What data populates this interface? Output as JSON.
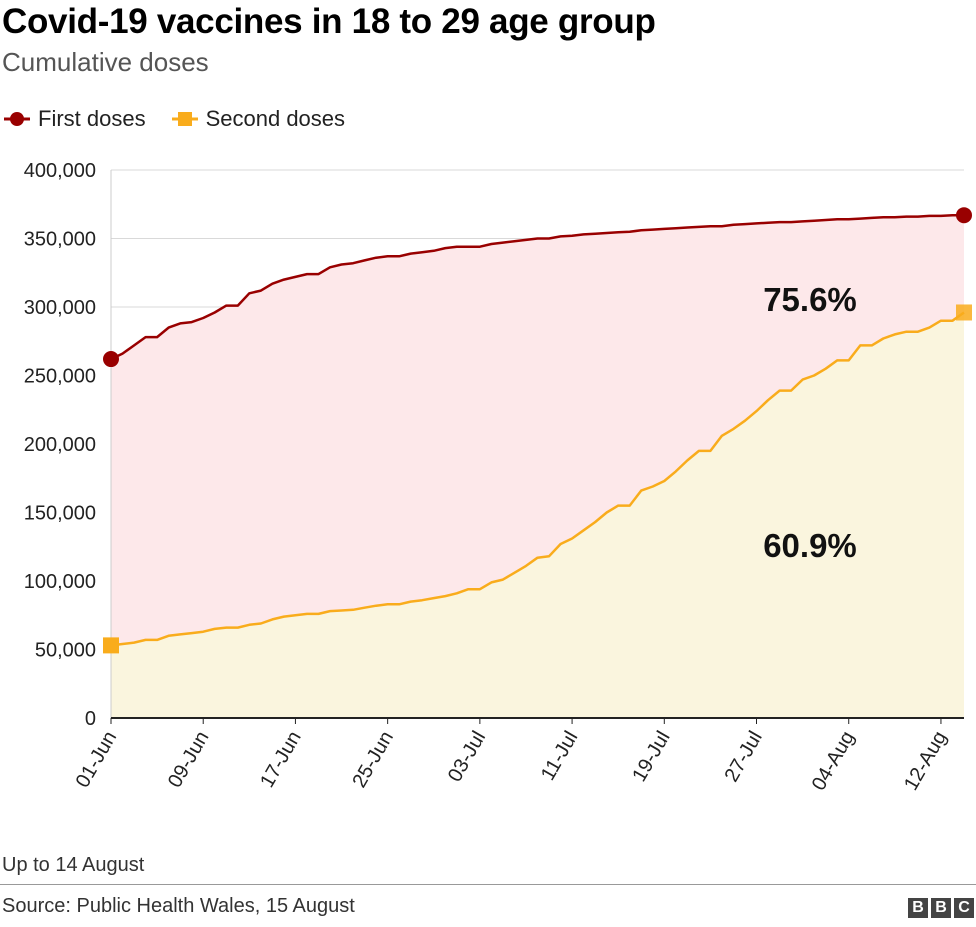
{
  "header": {
    "title": "Covid-19 vaccines in 18 to 29 age group",
    "subtitle": "Cumulative doses"
  },
  "legend": {
    "items": [
      {
        "label": "First doses",
        "color": "#990000",
        "marker": "circle"
      },
      {
        "label": "Second doses",
        "color": "#f9ac1c",
        "marker": "square"
      }
    ]
  },
  "footer": {
    "note": "Up to 14 August",
    "source": "Source: Public Health Wales, 15 August",
    "logo_letters": [
      "B",
      "B",
      "C"
    ]
  },
  "chart_data": {
    "type": "area",
    "x_start": "2021-06-01",
    "x_end": "2021-08-14",
    "x_tick_labels": [
      "01-Jun",
      "09-Jun",
      "17-Jun",
      "25-Jun",
      "03-Jul",
      "11-Jul",
      "19-Jul",
      "27-Jul",
      "04-Aug",
      "12-Aug"
    ],
    "y_tick_labels": [
      "0",
      "50,000",
      "100,000",
      "150,000",
      "200,000",
      "250,000",
      "300,000",
      "350,000",
      "400,000"
    ],
    "ylim": [
      0,
      400000
    ],
    "grid": "horizontal",
    "legend_position": "top-left",
    "annotations": [
      {
        "text": "75.6%",
        "series": "First doses"
      },
      {
        "text": "60.9%",
        "series": "Second doses"
      }
    ],
    "series": [
      {
        "name": "First doses",
        "color": "#990000",
        "fill": "#fde8ea",
        "points": [
          [
            "2021-06-01",
            262000
          ],
          [
            "2021-06-02",
            266000
          ],
          [
            "2021-06-03",
            272000
          ],
          [
            "2021-06-04",
            278000
          ],
          [
            "2021-06-05",
            278000
          ],
          [
            "2021-06-06",
            285000
          ],
          [
            "2021-06-07",
            288000
          ],
          [
            "2021-06-08",
            289000
          ],
          [
            "2021-06-09",
            292000
          ],
          [
            "2021-06-10",
            296000
          ],
          [
            "2021-06-11",
            301000
          ],
          [
            "2021-06-12",
            301000
          ],
          [
            "2021-06-13",
            310000
          ],
          [
            "2021-06-14",
            312000
          ],
          [
            "2021-06-15",
            317000
          ],
          [
            "2021-06-16",
            320000
          ],
          [
            "2021-06-17",
            322000
          ],
          [
            "2021-06-18",
            324000
          ],
          [
            "2021-06-19",
            324000
          ],
          [
            "2021-06-20",
            329000
          ],
          [
            "2021-06-21",
            331000
          ],
          [
            "2021-06-22",
            332000
          ],
          [
            "2021-06-23",
            334000
          ],
          [
            "2021-06-24",
            336000
          ],
          [
            "2021-06-25",
            337000
          ],
          [
            "2021-06-26",
            337000
          ],
          [
            "2021-06-27",
            339000
          ],
          [
            "2021-06-28",
            340000
          ],
          [
            "2021-06-29",
            341000
          ],
          [
            "2021-06-30",
            343000
          ],
          [
            "2021-07-01",
            344000
          ],
          [
            "2021-07-02",
            344000
          ],
          [
            "2021-07-03",
            344000
          ],
          [
            "2021-07-04",
            346000
          ],
          [
            "2021-07-05",
            347000
          ],
          [
            "2021-07-06",
            348000
          ],
          [
            "2021-07-07",
            349000
          ],
          [
            "2021-07-08",
            350000
          ],
          [
            "2021-07-09",
            350000
          ],
          [
            "2021-07-10",
            351500
          ],
          [
            "2021-07-11",
            352000
          ],
          [
            "2021-07-12",
            353000
          ],
          [
            "2021-07-13",
            353500
          ],
          [
            "2021-07-14",
            354000
          ],
          [
            "2021-07-15",
            354500
          ],
          [
            "2021-07-16",
            355000
          ],
          [
            "2021-07-17",
            356000
          ],
          [
            "2021-07-18",
            356500
          ],
          [
            "2021-07-19",
            357000
          ],
          [
            "2021-07-20",
            357500
          ],
          [
            "2021-07-21",
            358000
          ],
          [
            "2021-07-22",
            358500
          ],
          [
            "2021-07-23",
            359000
          ],
          [
            "2021-07-24",
            359000
          ],
          [
            "2021-07-25",
            360000
          ],
          [
            "2021-07-26",
            360500
          ],
          [
            "2021-07-27",
            361000
          ],
          [
            "2021-07-28",
            361500
          ],
          [
            "2021-07-29",
            362000
          ],
          [
            "2021-07-30",
            362000
          ],
          [
            "2021-07-31",
            362500
          ],
          [
            "2021-08-01",
            363000
          ],
          [
            "2021-08-02",
            363500
          ],
          [
            "2021-08-03",
            364000
          ],
          [
            "2021-08-04",
            364000
          ],
          [
            "2021-08-05",
            364500
          ],
          [
            "2021-08-06",
            365000
          ],
          [
            "2021-08-07",
            365500
          ],
          [
            "2021-08-08",
            365500
          ],
          [
            "2021-08-09",
            366000
          ],
          [
            "2021-08-10",
            366000
          ],
          [
            "2021-08-11",
            366500
          ],
          [
            "2021-08-12",
            366500
          ],
          [
            "2021-08-13",
            367000
          ],
          [
            "2021-08-14",
            367000
          ]
        ]
      },
      {
        "name": "Second doses",
        "color": "#f9ac1c",
        "fill": "#faf5de",
        "points": [
          [
            "2021-06-01",
            53000
          ],
          [
            "2021-06-02",
            54000
          ],
          [
            "2021-06-03",
            55000
          ],
          [
            "2021-06-04",
            57000
          ],
          [
            "2021-06-05",
            57000
          ],
          [
            "2021-06-06",
            60000
          ],
          [
            "2021-06-07",
            61000
          ],
          [
            "2021-06-08",
            62000
          ],
          [
            "2021-06-09",
            63000
          ],
          [
            "2021-06-10",
            65000
          ],
          [
            "2021-06-11",
            66000
          ],
          [
            "2021-06-12",
            66000
          ],
          [
            "2021-06-13",
            68000
          ],
          [
            "2021-06-14",
            69000
          ],
          [
            "2021-06-15",
            72000
          ],
          [
            "2021-06-16",
            74000
          ],
          [
            "2021-06-17",
            75000
          ],
          [
            "2021-06-18",
            76000
          ],
          [
            "2021-06-19",
            76000
          ],
          [
            "2021-06-20",
            78000
          ],
          [
            "2021-06-21",
            78500
          ],
          [
            "2021-06-22",
            79000
          ],
          [
            "2021-06-23",
            80500
          ],
          [
            "2021-06-24",
            82000
          ],
          [
            "2021-06-25",
            83000
          ],
          [
            "2021-06-26",
            83000
          ],
          [
            "2021-06-27",
            85000
          ],
          [
            "2021-06-28",
            86000
          ],
          [
            "2021-06-29",
            87500
          ],
          [
            "2021-06-30",
            89000
          ],
          [
            "2021-07-01",
            91000
          ],
          [
            "2021-07-02",
            94000
          ],
          [
            "2021-07-03",
            94000
          ],
          [
            "2021-07-04",
            99000
          ],
          [
            "2021-07-05",
            101000
          ],
          [
            "2021-07-06",
            106000
          ],
          [
            "2021-07-07",
            111000
          ],
          [
            "2021-07-08",
            117000
          ],
          [
            "2021-07-09",
            118000
          ],
          [
            "2021-07-10",
            127000
          ],
          [
            "2021-07-11",
            131000
          ],
          [
            "2021-07-12",
            137000
          ],
          [
            "2021-07-13",
            143000
          ],
          [
            "2021-07-14",
            150000
          ],
          [
            "2021-07-15",
            155000
          ],
          [
            "2021-07-16",
            155000
          ],
          [
            "2021-07-17",
            166000
          ],
          [
            "2021-07-18",
            169000
          ],
          [
            "2021-07-19",
            173000
          ],
          [
            "2021-07-20",
            180000
          ],
          [
            "2021-07-21",
            188000
          ],
          [
            "2021-07-22",
            195000
          ],
          [
            "2021-07-23",
            195000
          ],
          [
            "2021-07-24",
            206000
          ],
          [
            "2021-07-25",
            211000
          ],
          [
            "2021-07-26",
            217000
          ],
          [
            "2021-07-27",
            224000
          ],
          [
            "2021-07-28",
            232000
          ],
          [
            "2021-07-29",
            239000
          ],
          [
            "2021-07-30",
            239000
          ],
          [
            "2021-07-31",
            247000
          ],
          [
            "2021-08-01",
            250000
          ],
          [
            "2021-08-02",
            255000
          ],
          [
            "2021-08-03",
            261000
          ],
          [
            "2021-08-04",
            261000
          ],
          [
            "2021-08-05",
            272000
          ],
          [
            "2021-08-06",
            272000
          ],
          [
            "2021-08-07",
            277000
          ],
          [
            "2021-08-08",
            280000
          ],
          [
            "2021-08-09",
            282000
          ],
          [
            "2021-08-10",
            282000
          ],
          [
            "2021-08-11",
            285000
          ],
          [
            "2021-08-12",
            290000
          ],
          [
            "2021-08-13",
            290000
          ],
          [
            "2021-08-14",
            296000
          ]
        ]
      }
    ]
  }
}
